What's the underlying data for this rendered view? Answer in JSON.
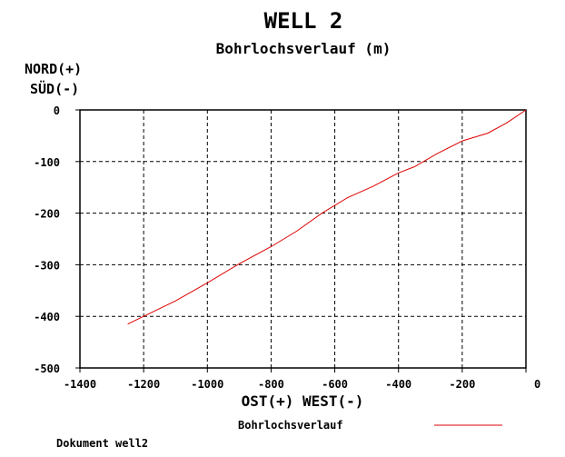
{
  "chart_data": {
    "type": "line",
    "title": "WELL 2",
    "subtitle": "Bohrlochsverlauf (m)",
    "ylabel_line1": "NORD(+)",
    "ylabel_line2": "SÜD(-)",
    "xlabel": "OST(+) WEST(-)",
    "xlim": [
      -1400,
      0
    ],
    "ylim": [
      -500,
      0
    ],
    "x_ticks": [
      -1400,
      -1200,
      -1000,
      -800,
      -600,
      -400,
      -200,
      0
    ],
    "x_tick_labels": [
      "-1400",
      "-1200",
      "-1000",
      "-800",
      "-600",
      "-400",
      "-200",
      "0"
    ],
    "y_ticks": [
      0,
      -100,
      -200,
      -300,
      -400,
      -500
    ],
    "y_tick_labels": [
      "0",
      "-100",
      "-200",
      "-300",
      "-400",
      "-500"
    ],
    "grid": true,
    "legend_position": "bottom-right",
    "series": [
      {
        "name": "Bohrlochsverlauf",
        "color": "#dd0000",
        "x": [
          0,
          -60,
          -120,
          -200,
          -280,
          -350,
          -400,
          -480,
          -560,
          -640,
          -720,
          -800,
          -900,
          -1000,
          -1100,
          -1200,
          -1250
        ],
        "y": [
          0,
          -25,
          -45,
          -60,
          -85,
          -110,
          -122,
          -148,
          -170,
          -200,
          -235,
          -265,
          -298,
          -335,
          -370,
          -400,
          -415
        ]
      }
    ]
  },
  "footer": {
    "document_label": "Dokument well2"
  }
}
